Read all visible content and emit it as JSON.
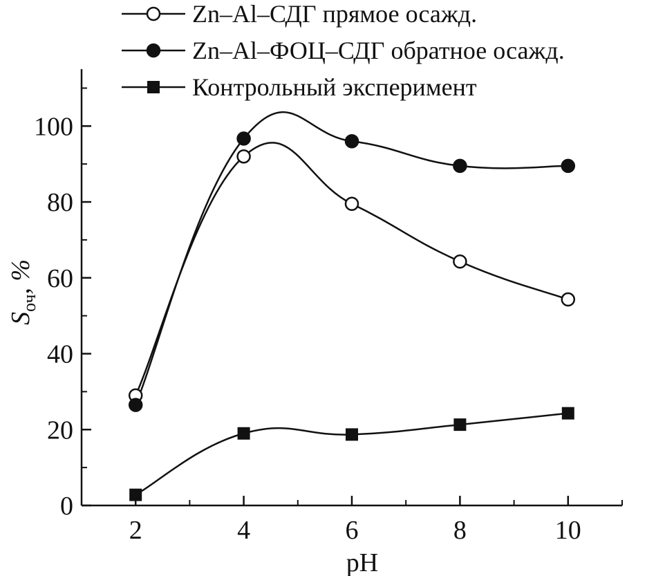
{
  "chart_data": {
    "type": "line",
    "title": "",
    "xlabel": "pH",
    "ylabel_main": "S",
    "ylabel_sub": "оч",
    "ylabel_unit": ", %",
    "x": [
      2,
      4,
      6,
      8,
      10
    ],
    "xlim": [
      1,
      11
    ],
    "ylim": [
      0,
      115
    ],
    "xticks": [
      2,
      4,
      6,
      8,
      10
    ],
    "yticks": [
      0,
      20,
      40,
      60,
      80,
      100
    ],
    "grid": false,
    "legend_position": "top",
    "series": [
      {
        "name": "Zn–Al–СДГ прямое осажд.",
        "marker": "open-circle",
        "color": "#111111",
        "values": [
          29,
          92,
          79.5,
          64.3,
          54.3
        ]
      },
      {
        "name": "Zn–Al–ФОЦ–СДГ обратное осажд.",
        "marker": "filled-circle",
        "color": "#111111",
        "values": [
          26.5,
          96.7,
          96,
          89.5,
          89.5
        ]
      },
      {
        "name": "Контрольный эксперимент",
        "marker": "filled-square",
        "color": "#111111",
        "values": [
          2.8,
          19,
          18.7,
          21.3,
          24.3
        ]
      }
    ]
  }
}
